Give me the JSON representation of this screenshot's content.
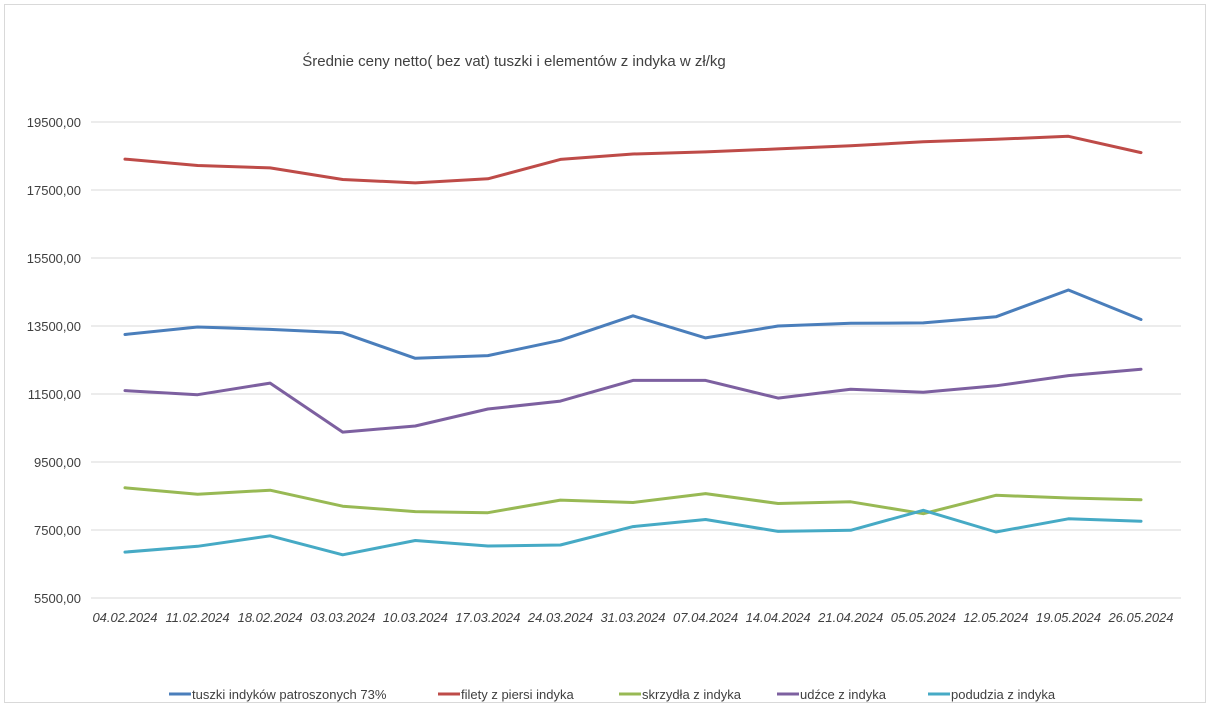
{
  "chart_data": {
    "type": "line",
    "title": "Średnie ceny netto( bez vat) tuszki i elementów z indyka w zł/kg",
    "xlabel": "",
    "ylabel": "",
    "ylim": [
      5500,
      19500
    ],
    "y_ticks": [
      "5500,00",
      "7500,00",
      "9500,00",
      "11500,00",
      "13500,00",
      "15500,00",
      "17500,00",
      "19500,00"
    ],
    "y_tick_values": [
      5500,
      7500,
      9500,
      11500,
      13500,
      15500,
      17500,
      19500
    ],
    "grid": true,
    "legend_position": "bottom",
    "categories": [
      "04.02.2024",
      "11.02.2024",
      "18.02.2024",
      "03.03.2024",
      "10.03.2024",
      "17.03.2024",
      "24.03.2024",
      "31.03.2024",
      "07.04.2024",
      "14.04.2024",
      "21.04.2024",
      "05.05.2024",
      "12.05.2024",
      "19.05.2024",
      "26.05.2024"
    ],
    "series": [
      {
        "name": "tuszki indyków patroszonych 73%",
        "color": "#4a7ebb",
        "values": [
          13250,
          13470,
          13400,
          13300,
          12550,
          12630,
          13080,
          13800,
          13150,
          13500,
          13580,
          13590,
          13770,
          14560,
          13690
        ]
      },
      {
        "name": "filety z piersi indyka",
        "color": "#be4b48",
        "values": [
          18410,
          18220,
          18150,
          17810,
          17710,
          17830,
          18400,
          18560,
          18620,
          18710,
          18800,
          18920,
          18990,
          19080,
          18600
        ]
      },
      {
        "name": "skrzydła z indyka",
        "color": "#98b954",
        "values": [
          8740,
          8550,
          8670,
          8200,
          8040,
          8010,
          8380,
          8310,
          8570,
          8280,
          8330,
          7980,
          8520,
          8440,
          8390
        ]
      },
      {
        "name": "udźce z indyka",
        "color": "#7d60a0",
        "values": [
          11600,
          11480,
          11820,
          10380,
          10560,
          11060,
          11290,
          11900,
          11900,
          11380,
          11640,
          11550,
          11740,
          12040,
          12230
        ]
      },
      {
        "name": "podudzia z indyka",
        "color": "#46aac5",
        "values": [
          6850,
          7020,
          7330,
          6770,
          7190,
          7030,
          7060,
          7600,
          7810,
          7460,
          7490,
          8080,
          7440,
          7830,
          7760
        ]
      }
    ]
  }
}
